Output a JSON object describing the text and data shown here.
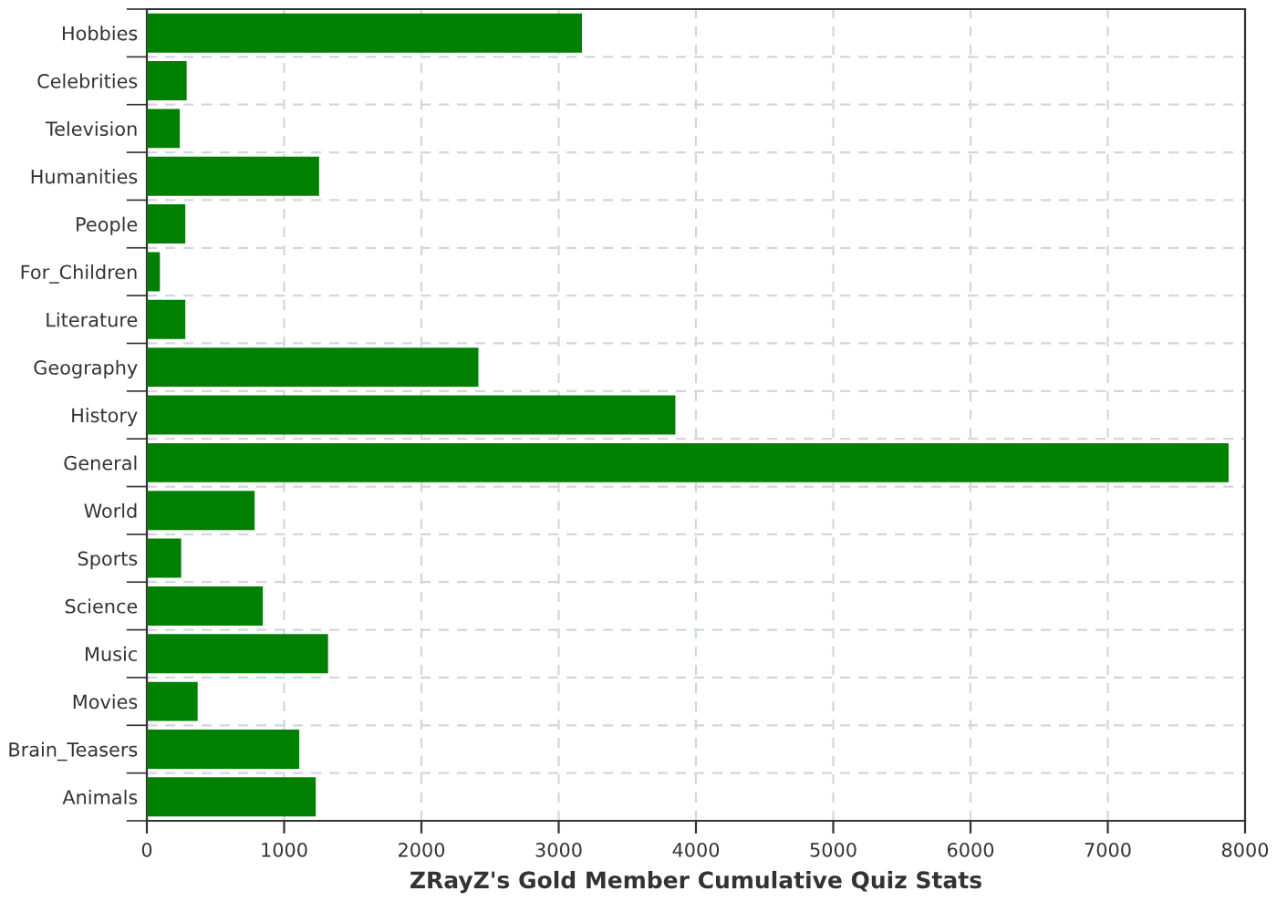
{
  "chart_data": {
    "type": "bar",
    "orientation": "horizontal",
    "xlabel": "ZRayZ's Gold Member Cumulative Quiz Stats",
    "categories": [
      "Hobbies",
      "Celebrities",
      "Television",
      "Humanities",
      "People",
      "For_Children",
      "Literature",
      "Geography",
      "History",
      "General",
      "World",
      "Sports",
      "Science",
      "Music",
      "Movies",
      "Brain_Teasers",
      "Animals"
    ],
    "values": [
      3170,
      290,
      240,
      1255,
      280,
      95,
      280,
      2415,
      3850,
      7880,
      785,
      250,
      845,
      1320,
      370,
      1110,
      1230
    ],
    "color": "#008000",
    "xlim": [
      0,
      8000
    ],
    "xticks": [
      0,
      1000,
      2000,
      3000,
      4000,
      5000,
      6000,
      7000,
      8000
    ],
    "grid": true,
    "legend": false
  }
}
